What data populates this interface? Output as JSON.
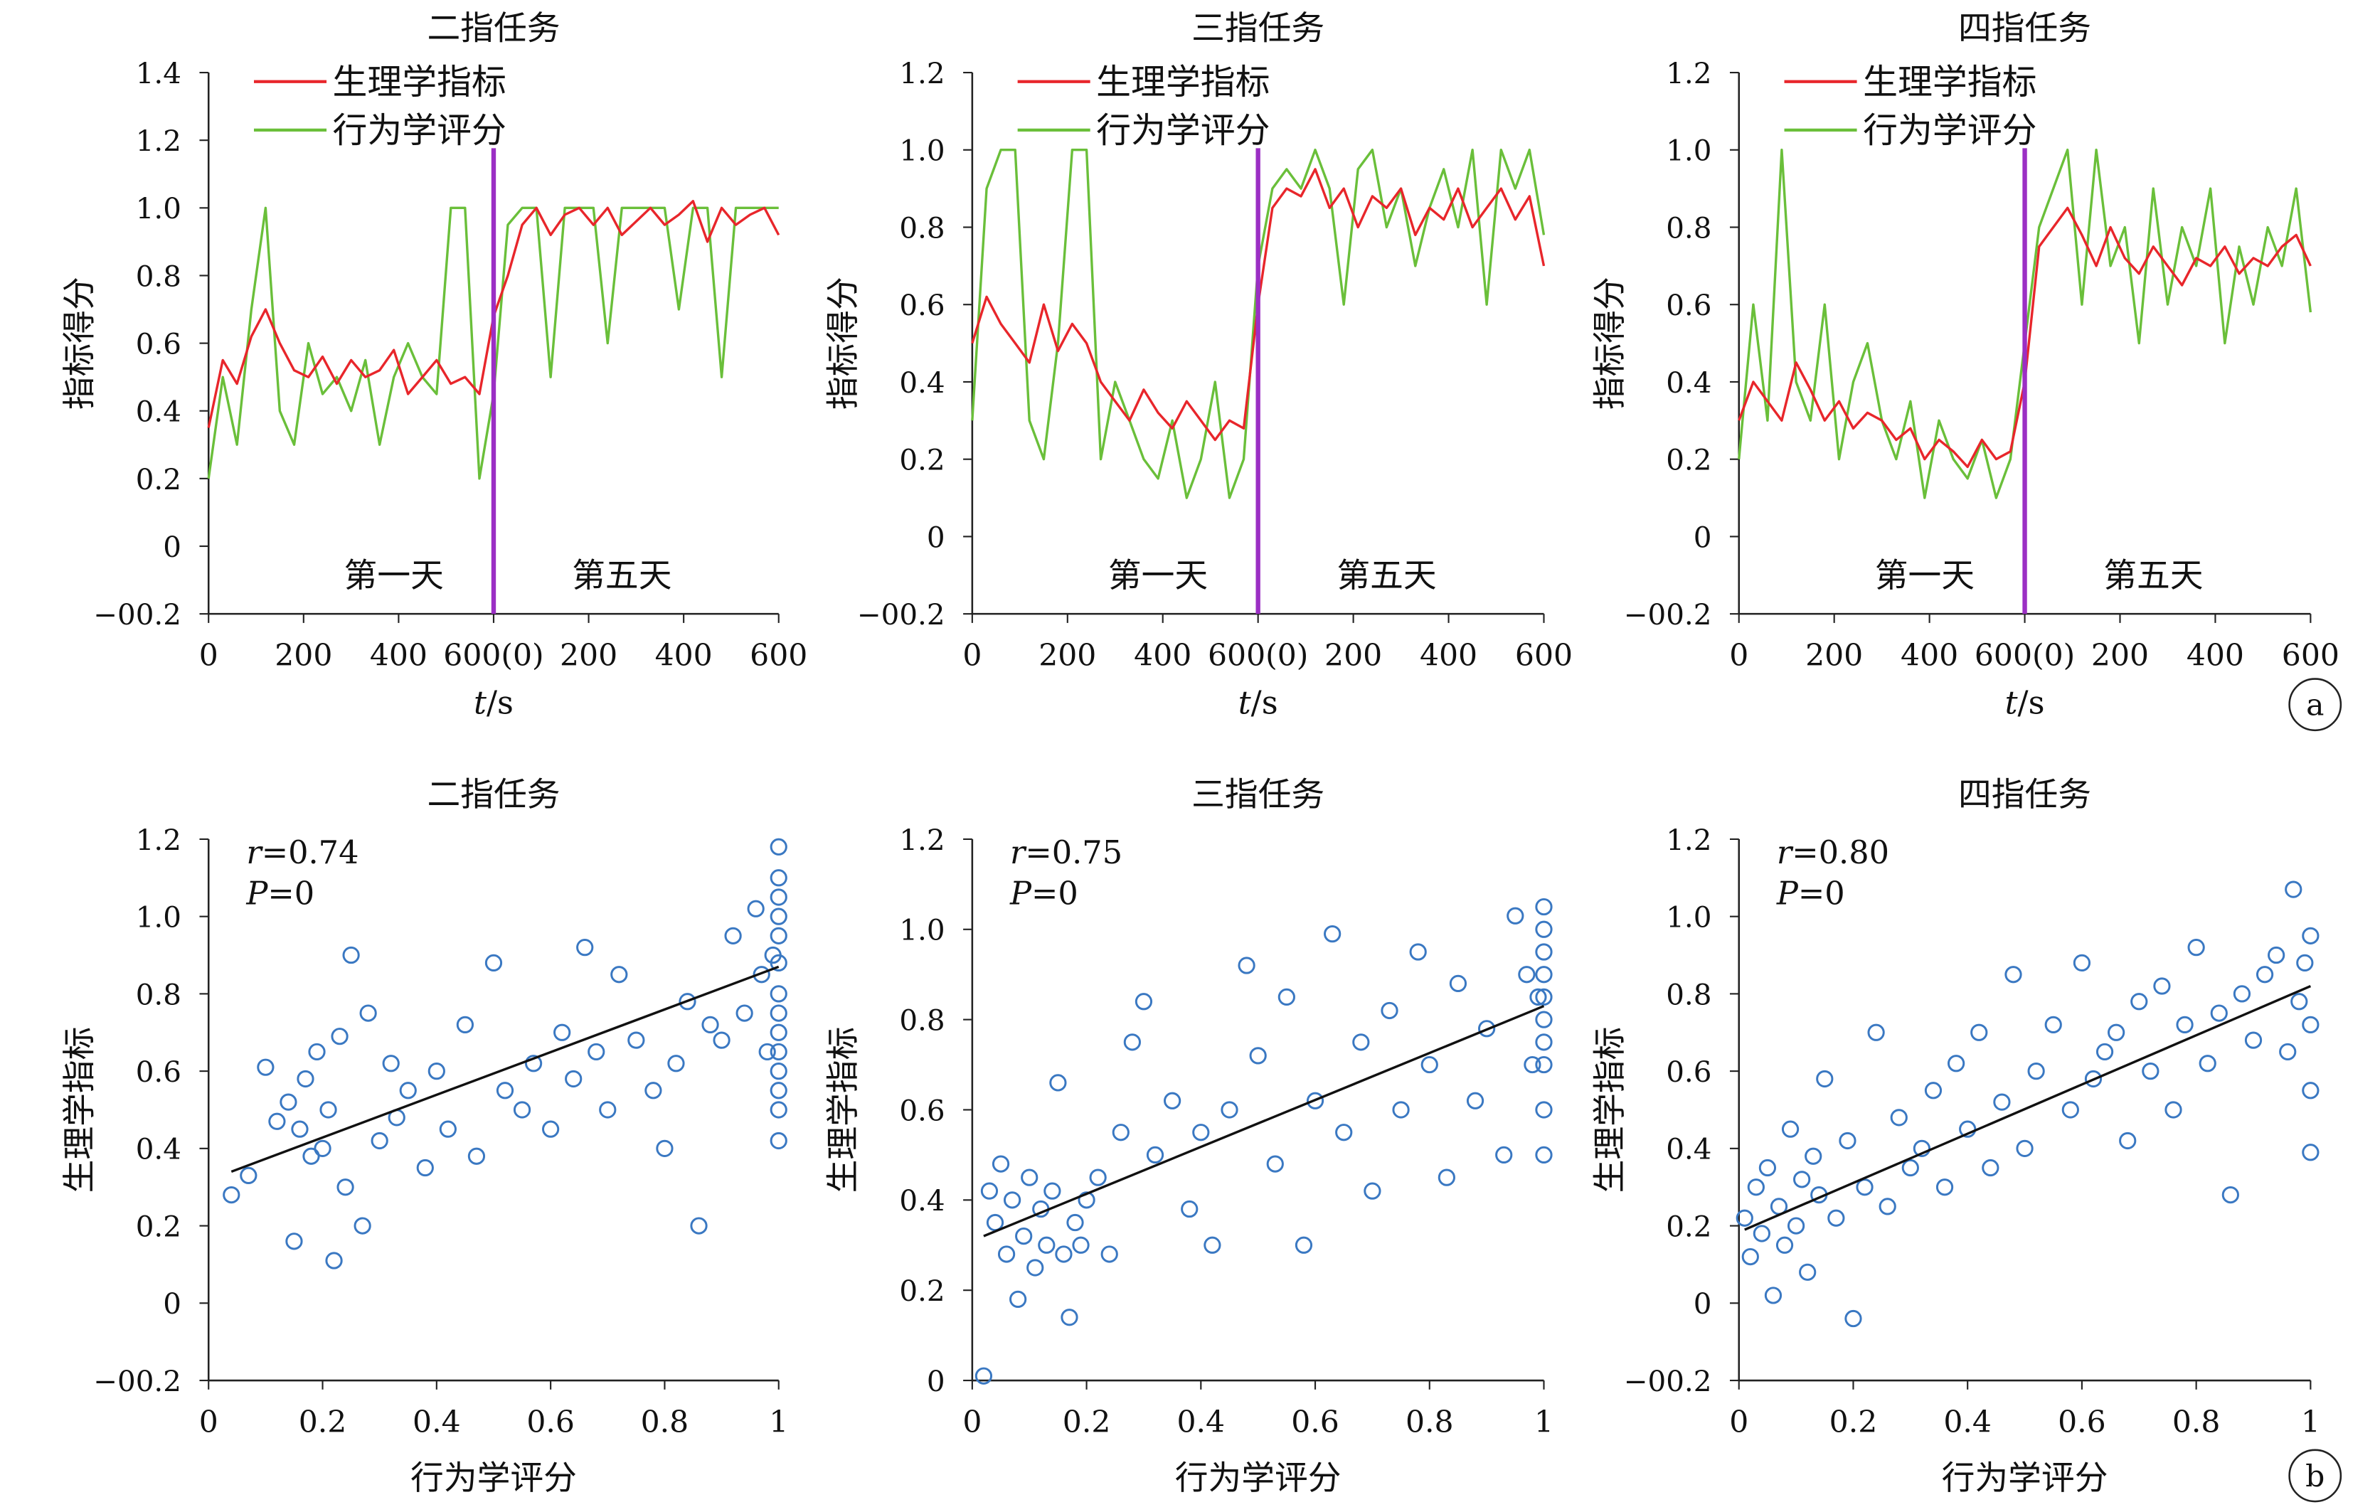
{
  "panel_labels": [
    "a",
    "b"
  ],
  "chart_data": [
    {
      "type": "line",
      "title": "二指任务",
      "xlabel": "t/s",
      "ylabel": "指标得分",
      "ylim": [
        -0.2,
        1.4
      ],
      "yticks": [
        -0.2,
        0,
        0.2,
        0.4,
        0.6,
        0.8,
        1.0,
        1.2,
        1.4
      ],
      "xticks": [
        "0",
        "200",
        "400",
        "600(0)",
        "200",
        "400",
        "600"
      ],
      "annotations": [
        "第一天",
        "第五天"
      ],
      "legend": "top-left",
      "series": [
        {
          "name": "生理学指标",
          "color": "#e8262b",
          "x": [
            0,
            30,
            60,
            90,
            120,
            150,
            180,
            210,
            240,
            270,
            300,
            330,
            360,
            390,
            420,
            450,
            480,
            510,
            540,
            570,
            600,
            630,
            660,
            690,
            720,
            750,
            780,
            810,
            840,
            870,
            900,
            930,
            960,
            990,
            1020,
            1050,
            1080,
            1110,
            1140,
            1170,
            1200
          ],
          "y": [
            0.35,
            0.55,
            0.48,
            0.62,
            0.7,
            0.6,
            0.52,
            0.5,
            0.56,
            0.48,
            0.55,
            0.5,
            0.52,
            0.58,
            0.45,
            0.5,
            0.55,
            0.48,
            0.5,
            0.45,
            0.68,
            0.8,
            0.95,
            1.0,
            0.92,
            0.98,
            1.0,
            0.95,
            1.0,
            0.92,
            0.96,
            1.0,
            0.95,
            0.98,
            1.02,
            0.9,
            1.0,
            0.95,
            0.98,
            1.0,
            0.92
          ]
        },
        {
          "name": "行为学评分",
          "color": "#6abf3a",
          "x": [
            0,
            30,
            60,
            90,
            120,
            150,
            180,
            210,
            240,
            270,
            300,
            330,
            360,
            390,
            420,
            450,
            480,
            510,
            540,
            570,
            600,
            630,
            660,
            690,
            720,
            750,
            780,
            810,
            840,
            870,
            900,
            930,
            960,
            990,
            1020,
            1050,
            1080,
            1110,
            1140,
            1170,
            1200
          ],
          "y": [
            0.2,
            0.5,
            0.3,
            0.7,
            1.0,
            0.4,
            0.3,
            0.6,
            0.45,
            0.5,
            0.4,
            0.55,
            0.3,
            0.5,
            0.6,
            0.5,
            0.45,
            1.0,
            1.0,
            0.2,
            0.45,
            0.95,
            1.0,
            1.0,
            0.5,
            1.0,
            1.0,
            1.0,
            0.6,
            1.0,
            1.0,
            1.0,
            1.0,
            0.7,
            1.0,
            1.0,
            0.5,
            1.0,
            1.0,
            1.0,
            1.0
          ]
        }
      ]
    },
    {
      "type": "line",
      "title": "三指任务",
      "xlabel": "t/s",
      "ylabel": "指标得分",
      "ylim": [
        -0.2,
        1.2
      ],
      "yticks": [
        -0.2,
        0,
        0.2,
        0.4,
        0.6,
        0.8,
        1.0,
        1.2
      ],
      "xticks": [
        "0",
        "200",
        "400",
        "600(0)",
        "200",
        "400",
        "600"
      ],
      "annotations": [
        "第一天",
        "第五天"
      ],
      "legend": "top-left",
      "series": [
        {
          "name": "生理学指标",
          "color": "#e8262b",
          "x": [
            0,
            30,
            60,
            90,
            120,
            150,
            180,
            210,
            240,
            270,
            300,
            330,
            360,
            390,
            420,
            450,
            480,
            510,
            540,
            570,
            600,
            630,
            660,
            690,
            720,
            750,
            780,
            810,
            840,
            870,
            900,
            930,
            960,
            990,
            1020,
            1050,
            1080,
            1110,
            1140,
            1170,
            1200
          ],
          "y": [
            0.5,
            0.62,
            0.55,
            0.5,
            0.45,
            0.6,
            0.48,
            0.55,
            0.5,
            0.4,
            0.35,
            0.3,
            0.38,
            0.32,
            0.28,
            0.35,
            0.3,
            0.25,
            0.3,
            0.28,
            0.6,
            0.85,
            0.9,
            0.88,
            0.95,
            0.85,
            0.9,
            0.8,
            0.88,
            0.85,
            0.9,
            0.78,
            0.85,
            0.82,
            0.9,
            0.8,
            0.85,
            0.9,
            0.82,
            0.88,
            0.7
          ]
        },
        {
          "name": "行为学评分",
          "color": "#6abf3a",
          "x": [
            0,
            30,
            60,
            90,
            120,
            150,
            180,
            210,
            240,
            270,
            300,
            330,
            360,
            390,
            420,
            450,
            480,
            510,
            540,
            570,
            600,
            630,
            660,
            690,
            720,
            750,
            780,
            810,
            840,
            870,
            900,
            930,
            960,
            990,
            1020,
            1050,
            1080,
            1110,
            1140,
            1170,
            1200
          ],
          "y": [
            0.3,
            0.9,
            1.0,
            1.0,
            0.3,
            0.2,
            0.5,
            1.0,
            1.0,
            0.2,
            0.4,
            0.3,
            0.2,
            0.15,
            0.3,
            0.1,
            0.2,
            0.4,
            0.1,
            0.2,
            0.7,
            0.9,
            0.95,
            0.9,
            1.0,
            0.9,
            0.6,
            0.95,
            1.0,
            0.8,
            0.9,
            0.7,
            0.85,
            0.95,
            0.8,
            1.0,
            0.6,
            1.0,
            0.9,
            1.0,
            0.78
          ]
        }
      ]
    },
    {
      "type": "line",
      "title": "四指任务",
      "xlabel": "t/s",
      "ylabel": "指标得分",
      "ylim": [
        -0.2,
        1.2
      ],
      "yticks": [
        -0.2,
        0,
        0.2,
        0.4,
        0.6,
        0.8,
        1.0,
        1.2
      ],
      "xticks": [
        "0",
        "200",
        "400",
        "600(0)",
        "200",
        "400",
        "600"
      ],
      "annotations": [
        "第一天",
        "第五天"
      ],
      "legend": "top-left",
      "series": [
        {
          "name": "生理学指标",
          "color": "#e8262b",
          "x": [
            0,
            30,
            60,
            90,
            120,
            150,
            180,
            210,
            240,
            270,
            300,
            330,
            360,
            390,
            420,
            450,
            480,
            510,
            540,
            570,
            600,
            630,
            660,
            690,
            720,
            750,
            780,
            810,
            840,
            870,
            900,
            930,
            960,
            990,
            1020,
            1050,
            1080,
            1110,
            1140,
            1170,
            1200
          ],
          "y": [
            0.3,
            0.4,
            0.35,
            0.3,
            0.45,
            0.38,
            0.3,
            0.35,
            0.28,
            0.32,
            0.3,
            0.25,
            0.28,
            0.2,
            0.25,
            0.22,
            0.18,
            0.25,
            0.2,
            0.22,
            0.4,
            0.75,
            0.8,
            0.85,
            0.78,
            0.7,
            0.8,
            0.72,
            0.68,
            0.75,
            0.7,
            0.65,
            0.72,
            0.7,
            0.75,
            0.68,
            0.72,
            0.7,
            0.75,
            0.78,
            0.7
          ]
        },
        {
          "name": "行为学评分",
          "color": "#6abf3a",
          "x": [
            0,
            30,
            60,
            90,
            120,
            150,
            180,
            210,
            240,
            270,
            300,
            330,
            360,
            390,
            420,
            450,
            480,
            510,
            540,
            570,
            600,
            630,
            660,
            690,
            720,
            750,
            780,
            810,
            840,
            870,
            900,
            930,
            960,
            990,
            1020,
            1050,
            1080,
            1110,
            1140,
            1170,
            1200
          ],
          "y": [
            0.2,
            0.6,
            0.3,
            1.0,
            0.4,
            0.3,
            0.6,
            0.2,
            0.4,
            0.5,
            0.3,
            0.2,
            0.35,
            0.1,
            0.3,
            0.2,
            0.15,
            0.25,
            0.1,
            0.2,
            0.5,
            0.8,
            0.9,
            1.0,
            0.6,
            1.0,
            0.7,
            0.8,
            0.5,
            0.9,
            0.6,
            0.8,
            0.7,
            0.9,
            0.5,
            0.75,
            0.6,
            0.8,
            0.7,
            0.9,
            0.58
          ]
        }
      ]
    },
    {
      "type": "scatter",
      "title": "二指任务",
      "xlabel": "行为学评分",
      "ylabel": "生理学指标",
      "xlim": [
        0,
        1
      ],
      "ylim": [
        -0.2,
        1.2
      ],
      "xticks": [
        0,
        0.2,
        0.4,
        0.6,
        0.8,
        1
      ],
      "yticks": [
        -0.2,
        0,
        0.2,
        0.4,
        0.6,
        0.8,
        1.0,
        1.2
      ],
      "r_value": "=0.74",
      "p_value": "=0",
      "fit_line": {
        "x": [
          0.04,
          1.0
        ],
        "y": [
          0.34,
          0.87
        ]
      },
      "color": "#3a78c2",
      "x": [
        0.04,
        0.07,
        0.1,
        0.12,
        0.14,
        0.15,
        0.16,
        0.17,
        0.18,
        0.19,
        0.2,
        0.21,
        0.22,
        0.23,
        0.24,
        0.25,
        0.27,
        0.28,
        0.3,
        0.32,
        0.33,
        0.35,
        0.38,
        0.4,
        0.42,
        0.45,
        0.47,
        0.5,
        0.52,
        0.55,
        0.57,
        0.6,
        0.62,
        0.64,
        0.66,
        0.68,
        0.7,
        0.72,
        0.75,
        0.78,
        0.8,
        0.82,
        0.84,
        0.86,
        0.88,
        0.9,
        0.92,
        0.94,
        0.96,
        0.97,
        0.98,
        0.99,
        1.0,
        1.0,
        1.0,
        1.0,
        1.0,
        1.0,
        1.0,
        1.0,
        1.0,
        1.0,
        1.0,
        1.0,
        1.0,
        1.0
      ],
      "y": [
        0.28,
        0.33,
        0.61,
        0.47,
        0.52,
        0.16,
        0.45,
        0.58,
        0.38,
        0.65,
        0.4,
        0.5,
        0.11,
        0.69,
        0.3,
        0.9,
        0.2,
        0.75,
        0.42,
        0.62,
        0.48,
        0.55,
        0.35,
        0.6,
        0.45,
        0.72,
        0.38,
        0.88,
        0.55,
        0.5,
        0.62,
        0.45,
        0.7,
        0.58,
        0.92,
        0.65,
        0.5,
        0.85,
        0.68,
        0.55,
        0.4,
        0.62,
        0.78,
        0.2,
        0.72,
        0.68,
        0.95,
        0.75,
        1.02,
        0.85,
        0.65,
        0.9,
        1.18,
        1.1,
        1.05,
        1.0,
        0.95,
        0.88,
        0.8,
        0.75,
        0.7,
        0.65,
        0.6,
        0.55,
        0.5,
        0.42
      ]
    },
    {
      "type": "scatter",
      "title": "三指任务",
      "xlabel": "行为学评分",
      "ylabel": "生理学指标",
      "xlim": [
        0,
        1
      ],
      "ylim": [
        0,
        1.2
      ],
      "xticks": [
        0,
        0.2,
        0.4,
        0.6,
        0.8,
        1
      ],
      "yticks": [
        0,
        0.2,
        0.4,
        0.6,
        0.8,
        1.0,
        1.2
      ],
      "r_value": "=0.75",
      "p_value": "=0",
      "fit_line": {
        "x": [
          0.02,
          1.0
        ],
        "y": [
          0.32,
          0.83
        ]
      },
      "color": "#3a78c2",
      "x": [
        0.02,
        0.03,
        0.04,
        0.05,
        0.06,
        0.07,
        0.08,
        0.09,
        0.1,
        0.11,
        0.12,
        0.13,
        0.14,
        0.15,
        0.16,
        0.17,
        0.18,
        0.19,
        0.2,
        0.22,
        0.24,
        0.26,
        0.28,
        0.3,
        0.32,
        0.35,
        0.38,
        0.4,
        0.42,
        0.45,
        0.48,
        0.5,
        0.53,
        0.55,
        0.58,
        0.6,
        0.63,
        0.65,
        0.68,
        0.7,
        0.73,
        0.75,
        0.78,
        0.8,
        0.83,
        0.85,
        0.88,
        0.9,
        0.93,
        0.95,
        0.97,
        0.98,
        0.99,
        1.0,
        1.0,
        1.0,
        1.0,
        1.0,
        1.0,
        1.0,
        1.0,
        1.0,
        1.0
      ],
      "y": [
        0.01,
        0.42,
        0.35,
        0.48,
        0.28,
        0.4,
        0.18,
        0.32,
        0.45,
        0.25,
        0.38,
        0.3,
        0.42,
        0.66,
        0.28,
        0.14,
        0.35,
        0.3,
        0.4,
        0.45,
        0.28,
        0.55,
        0.75,
        0.84,
        0.5,
        0.62,
        0.38,
        0.55,
        0.3,
        0.6,
        0.92,
        0.72,
        0.48,
        0.85,
        0.3,
        0.62,
        0.99,
        0.55,
        0.75,
        0.42,
        0.82,
        0.6,
        0.95,
        0.7,
        0.45,
        0.88,
        0.62,
        0.78,
        0.5,
        1.03,
        0.9,
        0.7,
        0.85,
        1.05,
        1.0,
        0.95,
        0.9,
        0.85,
        0.8,
        0.75,
        0.7,
        0.6,
        0.5
      ]
    },
    {
      "type": "scatter",
      "title": "四指任务",
      "xlabel": "行为学评分",
      "ylabel": "生理学指标",
      "xlim": [
        0,
        1
      ],
      "ylim": [
        -0.2,
        1.2
      ],
      "xticks": [
        0,
        0.2,
        0.4,
        0.6,
        0.8,
        1
      ],
      "yticks": [
        -0.2,
        0,
        0.2,
        0.4,
        0.6,
        0.8,
        1.0,
        1.2
      ],
      "r_value": "=0.80",
      "p_value": "=0",
      "fit_line": {
        "x": [
          0.01,
          1.0
        ],
        "y": [
          0.19,
          0.82
        ]
      },
      "color": "#3a78c2",
      "x": [
        0.01,
        0.02,
        0.03,
        0.04,
        0.05,
        0.06,
        0.07,
        0.08,
        0.09,
        0.1,
        0.11,
        0.12,
        0.13,
        0.14,
        0.15,
        0.17,
        0.19,
        0.2,
        0.22,
        0.24,
        0.26,
        0.28,
        0.3,
        0.32,
        0.34,
        0.36,
        0.38,
        0.4,
        0.42,
        0.44,
        0.46,
        0.48,
        0.5,
        0.52,
        0.55,
        0.58,
        0.6,
        0.62,
        0.64,
        0.66,
        0.68,
        0.7,
        0.72,
        0.74,
        0.76,
        0.78,
        0.8,
        0.82,
        0.84,
        0.86,
        0.88,
        0.9,
        0.92,
        0.94,
        0.96,
        0.97,
        0.98,
        0.99,
        1.0,
        1.0,
        1.0,
        1.0
      ],
      "y": [
        0.22,
        0.12,
        0.3,
        0.18,
        0.35,
        0.02,
        0.25,
        0.15,
        0.45,
        0.2,
        0.32,
        0.08,
        0.38,
        0.28,
        0.58,
        0.22,
        0.42,
        -0.04,
        0.3,
        0.7,
        0.25,
        0.48,
        0.35,
        0.4,
        0.55,
        0.3,
        0.62,
        0.45,
        0.7,
        0.35,
        0.52,
        0.85,
        0.4,
        0.6,
        0.72,
        0.5,
        0.88,
        0.58,
        0.65,
        0.7,
        0.42,
        0.78,
        0.6,
        0.82,
        0.5,
        0.72,
        0.92,
        0.62,
        0.75,
        0.28,
        0.8,
        0.68,
        0.85,
        0.9,
        0.65,
        1.07,
        0.78,
        0.88,
        0.95,
        0.72,
        0.55,
        0.39
      ]
    }
  ]
}
